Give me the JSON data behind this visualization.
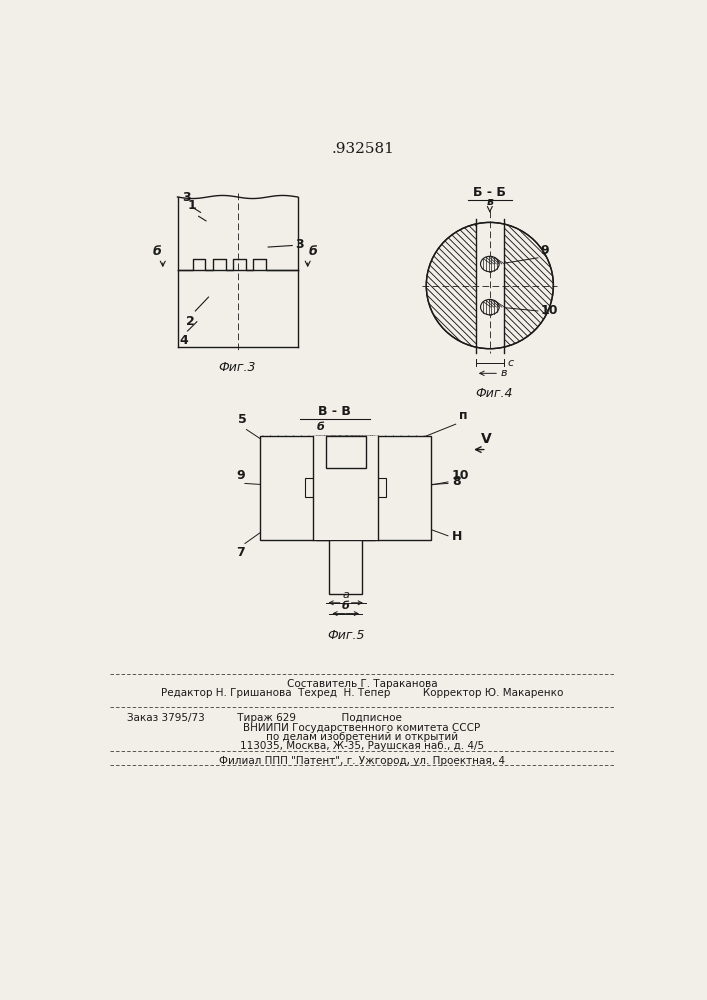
{
  "title": ".932581",
  "bg_color": "#f2efe8",
  "line_color": "#1a1a1a",
  "text_color": "#1a1a1a",
  "fig3_label": "Фиг.3",
  "fig4_label": "Фиг.4",
  "fig5_label": "Фиг.5",
  "section_bb": "Б-Б",
  "section_vv": "В - В",
  "lbl_b": "Б",
  "lbl_v": "в",
  "footer1": "Составитель Г. Тараканова",
  "footer2": "Редактор Н. Гришанова  Техред  Н. Тепер          Корректор Ю. Макаренко",
  "footer3": "Заказ 3795/73          Тираж 629              Подписное",
  "footer4": "ВНИИПИ Государственного комитета СССР",
  "footer5": "по делам изобретений и открытий",
  "footer6": "113035, Москва, Ж-35, Раушская наб., д. 4/5",
  "footer7": "Филиал ППП \"Патент\", г. Ужгород, ул. Проектная, 4"
}
